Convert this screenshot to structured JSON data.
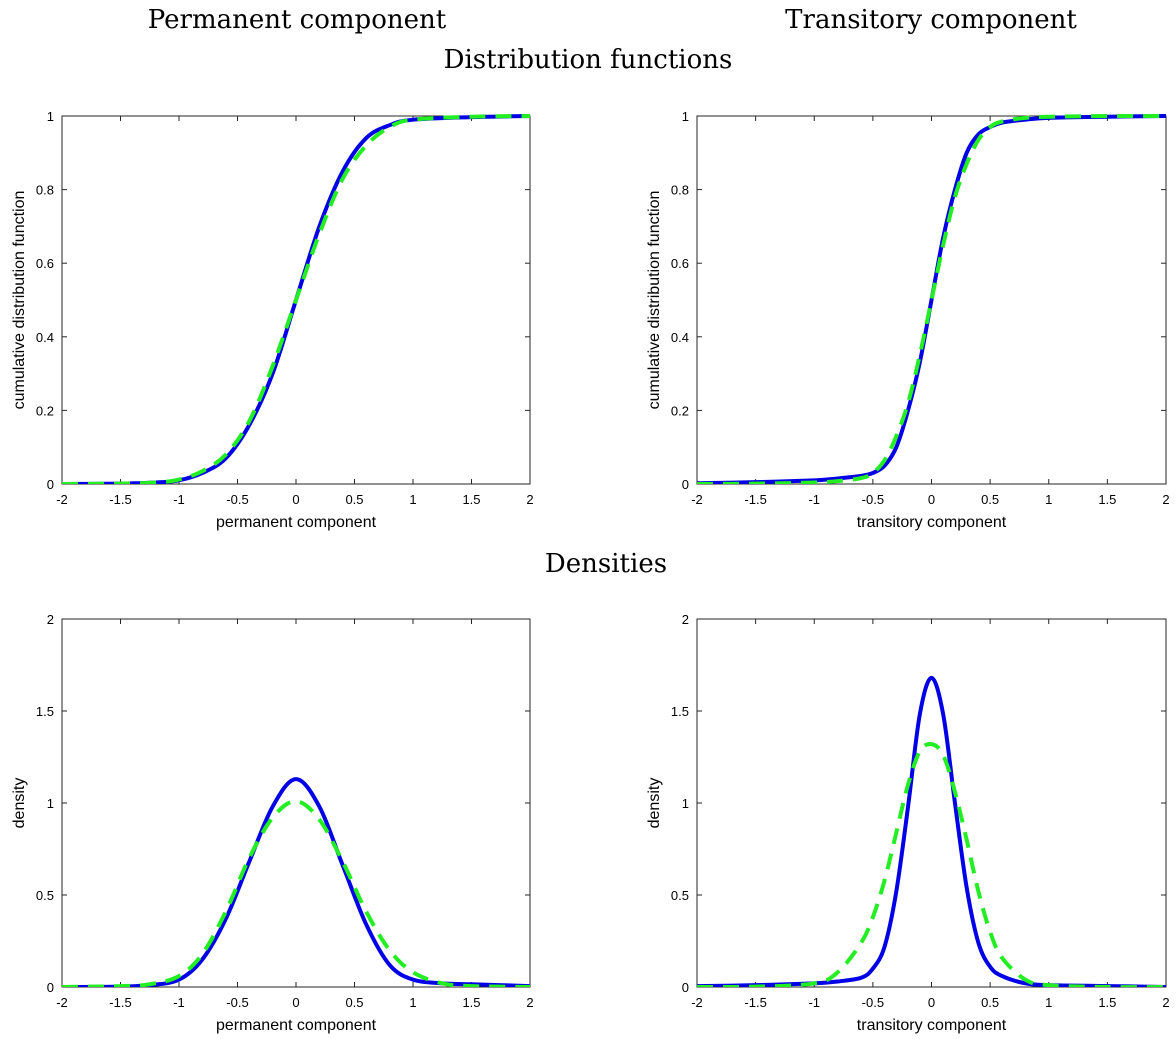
{
  "column_titles": [
    "Permanent component",
    "Transitory component"
  ],
  "section_titles": {
    "distribution": "Distribution functions",
    "densities": "Densities"
  },
  "colors": {
    "solid": "#0000e6",
    "dashed": "#22ee22",
    "axis": "#262626",
    "background": "#ffffff"
  },
  "chart_data": [
    {
      "type": "line",
      "section": "distribution",
      "xlabel": "permanent component",
      "ylabel": "cumulative distribution function",
      "xlim": [
        -2,
        2
      ],
      "ylim": [
        0,
        1
      ],
      "xticks": [
        "-2",
        "-1.5",
        "-1",
        "-0.5",
        "0",
        "0.5",
        "1",
        "1.5",
        "2"
      ],
      "yticks": [
        "0",
        "0.2",
        "0.4",
        "0.6",
        "0.8",
        "1"
      ],
      "grid": false,
      "x": [
        -2,
        -1.5,
        -1.2,
        -1,
        -0.8,
        -0.6,
        -0.4,
        -0.2,
        0,
        0.2,
        0.4,
        0.6,
        0.8,
        1,
        1.5,
        2
      ],
      "series": [
        {
          "style": "solid",
          "values": [
            0,
            0.001,
            0.004,
            0.01,
            0.03,
            0.07,
            0.16,
            0.3,
            0.5,
            0.7,
            0.85,
            0.94,
            0.975,
            0.99,
            0.997,
            1
          ]
        },
        {
          "style": "dashed",
          "values": [
            0,
            0.001,
            0.004,
            0.012,
            0.035,
            0.08,
            0.17,
            0.32,
            0.5,
            0.68,
            0.83,
            0.92,
            0.97,
            0.99,
            0.998,
            1
          ]
        }
      ]
    },
    {
      "type": "line",
      "section": "distribution",
      "xlabel": "transitory component",
      "ylabel": "cumulative distribution function",
      "xlim": [
        -2,
        2
      ],
      "ylim": [
        0,
        1
      ],
      "xticks": [
        "-2",
        "-1.5",
        "-1",
        "-0.5",
        "0",
        "0.5",
        "1",
        "1.5",
        "2"
      ],
      "yticks": [
        "0",
        "0.2",
        "0.4",
        "0.6",
        "0.8",
        "1"
      ],
      "grid": false,
      "x": [
        -2,
        -1.5,
        -1,
        -0.8,
        -0.6,
        -0.5,
        -0.4,
        -0.3,
        -0.2,
        -0.1,
        0,
        0.1,
        0.2,
        0.3,
        0.4,
        0.5,
        0.6,
        0.8,
        1,
        1.5,
        2
      ],
      "series": [
        {
          "style": "solid",
          "values": [
            0.002,
            0.005,
            0.01,
            0.015,
            0.022,
            0.03,
            0.05,
            0.1,
            0.2,
            0.33,
            0.5,
            0.67,
            0.8,
            0.9,
            0.95,
            0.97,
            0.982,
            0.99,
            0.995,
            0.998,
            1
          ]
        },
        {
          "style": "dashed",
          "values": [
            0,
            0.001,
            0.004,
            0.008,
            0.016,
            0.03,
            0.065,
            0.13,
            0.22,
            0.35,
            0.5,
            0.65,
            0.78,
            0.87,
            0.935,
            0.97,
            0.985,
            0.995,
            0.998,
            1,
            1
          ]
        }
      ]
    },
    {
      "type": "line",
      "section": "densities",
      "xlabel": "permanent component",
      "ylabel": "density",
      "xlim": [
        -2,
        2
      ],
      "ylim": [
        0,
        2
      ],
      "xticks": [
        "-2",
        "-1.5",
        "-1",
        "-0.5",
        "0",
        "0.5",
        "1",
        "1.5",
        "2"
      ],
      "yticks": [
        "0",
        "0.5",
        "1",
        "1.5",
        "2"
      ],
      "grid": false,
      "x": [
        -2,
        -1.5,
        -1.25,
        -1,
        -0.8,
        -0.6,
        -0.4,
        -0.2,
        0,
        0.2,
        0.4,
        0.6,
        0.8,
        1,
        1.25,
        1.5,
        2
      ],
      "series": [
        {
          "style": "solid",
          "values": [
            0,
            0.002,
            0.01,
            0.04,
            0.15,
            0.37,
            0.68,
            0.98,
            1.13,
            0.98,
            0.66,
            0.34,
            0.12,
            0.04,
            0.02,
            0.015,
            0.005
          ]
        },
        {
          "style": "dashed",
          "values": [
            0,
            0.005,
            0.015,
            0.06,
            0.18,
            0.41,
            0.7,
            0.92,
            1.01,
            0.91,
            0.68,
            0.41,
            0.2,
            0.08,
            0.02,
            0.005,
            0
          ]
        }
      ]
    },
    {
      "type": "line",
      "section": "densities",
      "xlabel": "transitory component",
      "ylabel": "density",
      "xlim": [
        -2,
        2
      ],
      "ylim": [
        0,
        2
      ],
      "xticks": [
        "-2",
        "-1.5",
        "-1",
        "-0.5",
        "0",
        "0.5",
        "1",
        "1.5",
        "2"
      ],
      "yticks": [
        "0",
        "0.5",
        "1",
        "1.5",
        "2"
      ],
      "grid": false,
      "x": [
        -2,
        -1.5,
        -1,
        -0.8,
        -0.6,
        -0.5,
        -0.4,
        -0.3,
        -0.2,
        -0.1,
        0,
        0.1,
        0.2,
        0.3,
        0.4,
        0.5,
        0.6,
        0.8,
        1,
        1.5,
        2
      ],
      "series": [
        {
          "style": "solid",
          "values": [
            0.005,
            0.01,
            0.02,
            0.03,
            0.05,
            0.1,
            0.22,
            0.52,
            0.98,
            1.48,
            1.68,
            1.48,
            1.0,
            0.54,
            0.24,
            0.11,
            0.06,
            0.02,
            0.01,
            0.005,
            0
          ]
        },
        {
          "style": "dashed",
          "values": [
            0,
            0.002,
            0.02,
            0.08,
            0.24,
            0.38,
            0.58,
            0.84,
            1.1,
            1.28,
            1.32,
            1.26,
            1.06,
            0.8,
            0.52,
            0.3,
            0.16,
            0.04,
            0.01,
            0,
            0
          ]
        }
      ]
    }
  ]
}
